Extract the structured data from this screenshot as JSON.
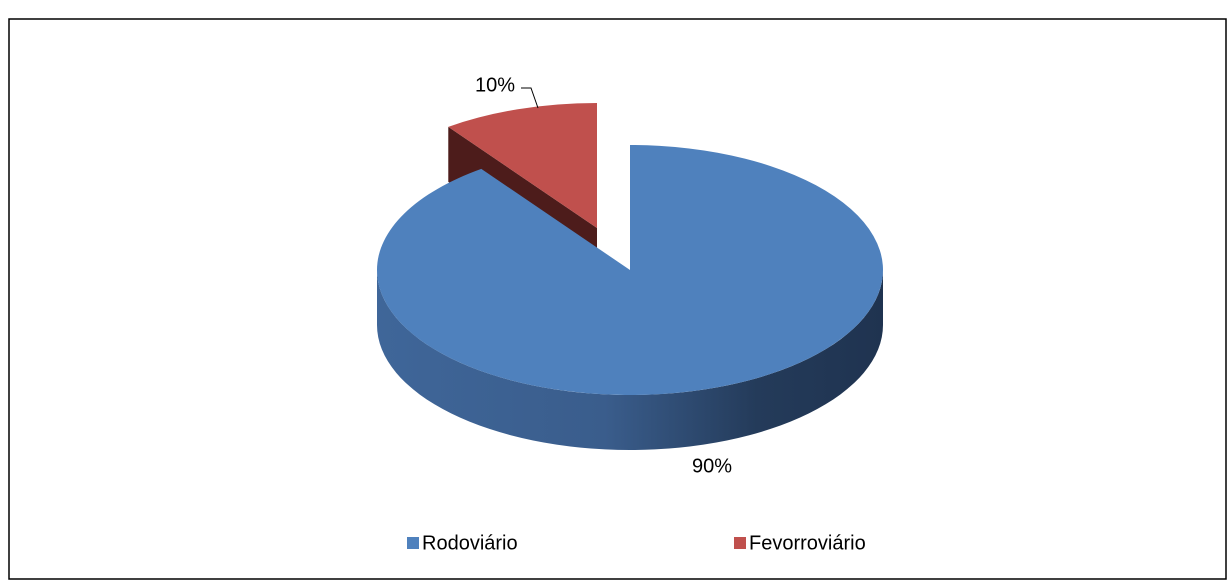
{
  "chart_data": {
    "type": "pie",
    "categories": [
      "Rodoviário",
      "Fevorroviário"
    ],
    "values": [
      90,
      10
    ],
    "value_labels": [
      "90%",
      "10%"
    ],
    "colors": [
      "#4f81bd",
      "#c0504d"
    ],
    "legend": "bottom"
  }
}
